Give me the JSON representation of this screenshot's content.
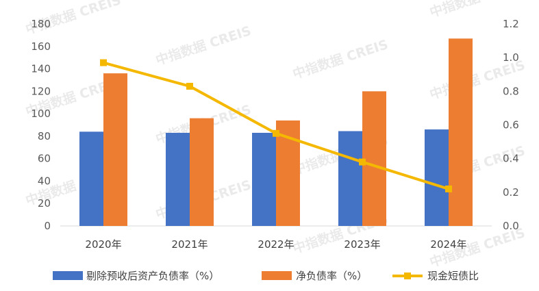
{
  "watermark": "中指数据 CREIS",
  "colors": {
    "bar1": "#4472c4",
    "bar2": "#ed7d31",
    "line": "#f5b800",
    "axis": "#d9d9d9"
  },
  "chart_data": {
    "type": "bar",
    "categories": [
      "2020年",
      "2021年",
      "2022年",
      "2023年",
      "2024年"
    ],
    "series": [
      {
        "name": "剔除预收后资产负债率（%）",
        "type": "bar",
        "axis": "left",
        "values": [
          84,
          83,
          83,
          84.5,
          86
        ]
      },
      {
        "name": "净负债率（%）",
        "type": "bar",
        "axis": "left",
        "values": [
          136,
          96,
          94,
          120,
          167
        ]
      },
      {
        "name": "现金短债比",
        "type": "line",
        "axis": "right",
        "marker": "square",
        "values": [
          0.97,
          0.83,
          0.55,
          0.38,
          0.22
        ]
      }
    ],
    "y_left": {
      "ylim": [
        0,
        180
      ],
      "ticks": [
        "0",
        "20",
        "40",
        "60",
        "80",
        "100",
        "120",
        "140",
        "160",
        "180"
      ]
    },
    "y_right": {
      "ylim": [
        0,
        1.2
      ],
      "ticks": [
        "0.0",
        "0.2",
        "0.4",
        "0.6",
        "0.8",
        "1.0",
        "1.2"
      ]
    },
    "grid": false,
    "legend": "bottom"
  }
}
